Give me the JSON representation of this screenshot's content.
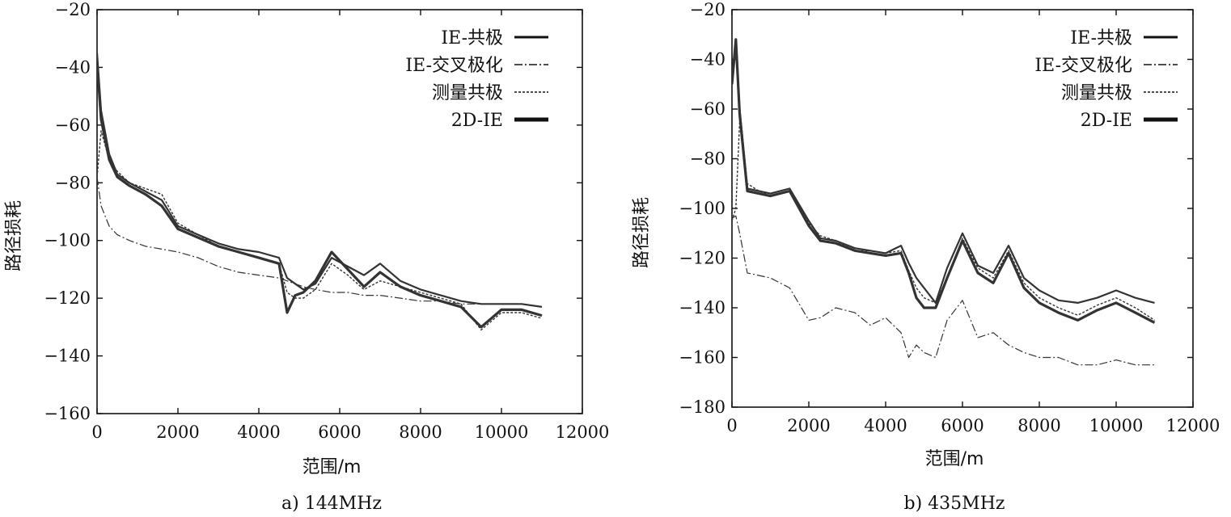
{
  "chart_data": [
    {
      "type": "line",
      "caption": "a) 144MHz",
      "xlabel": "范围/m",
      "ylabel": "路径损耗",
      "xlim": [
        0,
        12000
      ],
      "ylim": [
        -160,
        -20
      ],
      "xticks": [
        0,
        2000,
        4000,
        6000,
        8000,
        10000,
        12000
      ],
      "yticks": [
        -20,
        -40,
        -60,
        -80,
        -100,
        -120,
        -140,
        -160
      ],
      "legend_position": "top-right",
      "grid": false,
      "series": [
        {
          "name": "IE-共极",
          "style": "solid-thick",
          "x": [
            0,
            100,
            300,
            500,
            800,
            1200,
            1600,
            2000,
            2500,
            3000,
            3500,
            4000,
            4500,
            4700,
            4900,
            5100,
            5400,
            5800,
            6200,
            6600,
            7000,
            7500,
            8000,
            8500,
            9000,
            9500,
            10000,
            10500,
            11000
          ],
          "y": [
            -35,
            -55,
            -70,
            -77,
            -80,
            -83,
            -86,
            -95,
            -98,
            -101,
            -103,
            -104,
            -106,
            -113,
            -115,
            -117,
            -115,
            -106,
            -109,
            -112,
            -108,
            -114,
            -117,
            -119,
            -121,
            -122,
            -122,
            -122,
            -123
          ]
        },
        {
          "name": "IE-交叉极化",
          "style": "dash-thin",
          "x": [
            0,
            100,
            300,
            500,
            800,
            1200,
            1600,
            2000,
            2500,
            3000,
            3500,
            4000,
            4500,
            4700,
            4900,
            5100,
            5400,
            5800,
            6200,
            6600,
            7000,
            7500,
            8000,
            8500,
            9000,
            9500,
            10000,
            10500,
            11000
          ],
          "y": [
            -78,
            -88,
            -95,
            -98,
            -100,
            -102,
            -103,
            -104,
            -106,
            -109,
            -111,
            -112,
            -113,
            -114,
            -115,
            -116,
            -117,
            -118,
            -118,
            -119,
            -119,
            -120,
            -121,
            -121,
            -122,
            -122,
            -122,
            -122,
            -123
          ]
        },
        {
          "name": "测量共极",
          "style": "dotted",
          "x": [
            0,
            100,
            300,
            500,
            800,
            1200,
            1600,
            2000,
            2500,
            3000,
            3500,
            4000,
            4500,
            4700,
            4900,
            5100,
            5400,
            5800,
            6200,
            6600,
            7000,
            7500,
            8000,
            8500,
            9000,
            9500,
            10000,
            10500,
            11000
          ],
          "y": [
            -78,
            -62,
            -72,
            -76,
            -80,
            -82,
            -84,
            -94,
            -98,
            -102,
            -104,
            -106,
            -108,
            -118,
            -120,
            -120,
            -117,
            -108,
            -112,
            -117,
            -114,
            -116,
            -118,
            -120,
            -122,
            -131,
            -125,
            -125,
            -127
          ]
        },
        {
          "name": "2D-IE",
          "style": "solid-bold",
          "x": [
            0,
            100,
            300,
            500,
            800,
            1200,
            1600,
            2000,
            2500,
            3000,
            3500,
            4000,
            4500,
            4700,
            4900,
            5100,
            5400,
            5800,
            6200,
            6600,
            7000,
            7500,
            8000,
            8500,
            9000,
            9500,
            10000,
            10500,
            11000
          ],
          "y": [
            -38,
            -58,
            -72,
            -78,
            -81,
            -84,
            -88,
            -96,
            -99,
            -102,
            -104,
            -106,
            -108,
            -125,
            -119,
            -118,
            -114,
            -104,
            -110,
            -116,
            -111,
            -116,
            -119,
            -121,
            -123,
            -130,
            -124,
            -124,
            -126
          ]
        }
      ]
    },
    {
      "type": "line",
      "caption": "b) 435MHz",
      "xlabel": "范围/m",
      "ylabel": "路径损耗",
      "xlim": [
        0,
        12000
      ],
      "ylim": [
        -180,
        -20
      ],
      "xticks": [
        0,
        2000,
        4000,
        6000,
        8000,
        10000,
        12000
      ],
      "yticks": [
        -20,
        -40,
        -60,
        -80,
        -100,
        -120,
        -140,
        -160,
        -180
      ],
      "legend_position": "top-right",
      "grid": false,
      "series": [
        {
          "name": "IE-共极",
          "style": "solid-thick",
          "x": [
            0,
            100,
            200,
            400,
            700,
            1000,
            1500,
            2000,
            2300,
            2700,
            3200,
            3600,
            4000,
            4400,
            4600,
            4800,
            5000,
            5300,
            5600,
            6000,
            6400,
            6800,
            7200,
            7600,
            8000,
            8500,
            9000,
            9500,
            10000,
            10500,
            11000
          ],
          "y": [
            -45,
            -35,
            -60,
            -92,
            -93,
            -94,
            -92,
            -105,
            -112,
            -113,
            -116,
            -117,
            -118,
            -115,
            -122,
            -128,
            -132,
            -138,
            -124,
            -110,
            -123,
            -126,
            -115,
            -128,
            -133,
            -137,
            -138,
            -136,
            -133,
            -136,
            -138
          ]
        },
        {
          "name": "IE-交叉极化",
          "style": "dash-thin",
          "x": [
            0,
            100,
            200,
            400,
            700,
            1000,
            1500,
            2000,
            2300,
            2700,
            3200,
            3600,
            4000,
            4400,
            4600,
            4800,
            5000,
            5300,
            5600,
            6000,
            6400,
            6800,
            7200,
            7600,
            8000,
            8500,
            9000,
            9500,
            10000,
            10500,
            11000
          ],
          "y": [
            -104,
            -103,
            -110,
            -126,
            -127,
            -128,
            -132,
            -145,
            -144,
            -140,
            -142,
            -147,
            -144,
            -150,
            -160,
            -155,
            -158,
            -160,
            -145,
            -137,
            -152,
            -150,
            -155,
            -158,
            -160,
            -160,
            -163,
            -163,
            -161,
            -163,
            -163
          ]
        },
        {
          "name": "测量共极",
          "style": "dotted",
          "x": [
            0,
            100,
            200,
            400,
            700,
            1000,
            1500,
            2000,
            2300,
            2700,
            3200,
            3600,
            4000,
            4400,
            4600,
            4800,
            5000,
            5300,
            5600,
            6000,
            6400,
            6800,
            7200,
            7600,
            8000,
            8500,
            9000,
            9500,
            10000,
            10500,
            11000
          ],
          "y": [
            -105,
            -100,
            -65,
            -90,
            -93,
            -95,
            -93,
            -106,
            -111,
            -113,
            -117,
            -117,
            -118,
            -117,
            -125,
            -132,
            -136,
            -138,
            -128,
            -112,
            -124,
            -128,
            -117,
            -130,
            -136,
            -140,
            -143,
            -139,
            -136,
            -140,
            -145
          ]
        },
        {
          "name": "2D-IE",
          "style": "solid-bold",
          "x": [
            0,
            100,
            200,
            400,
            700,
            1000,
            1500,
            2000,
            2300,
            2700,
            3200,
            3600,
            4000,
            4400,
            4600,
            4800,
            5000,
            5300,
            5600,
            6000,
            6400,
            6800,
            7200,
            7600,
            8000,
            8500,
            9000,
            9500,
            10000,
            10500,
            11000
          ],
          "y": [
            -50,
            -32,
            -62,
            -93,
            -94,
            -95,
            -93,
            -107,
            -113,
            -114,
            -117,
            -118,
            -119,
            -118,
            -126,
            -136,
            -140,
            -140,
            -128,
            -113,
            -126,
            -130,
            -118,
            -132,
            -138,
            -142,
            -145,
            -141,
            -138,
            -142,
            -146
          ]
        }
      ]
    }
  ]
}
